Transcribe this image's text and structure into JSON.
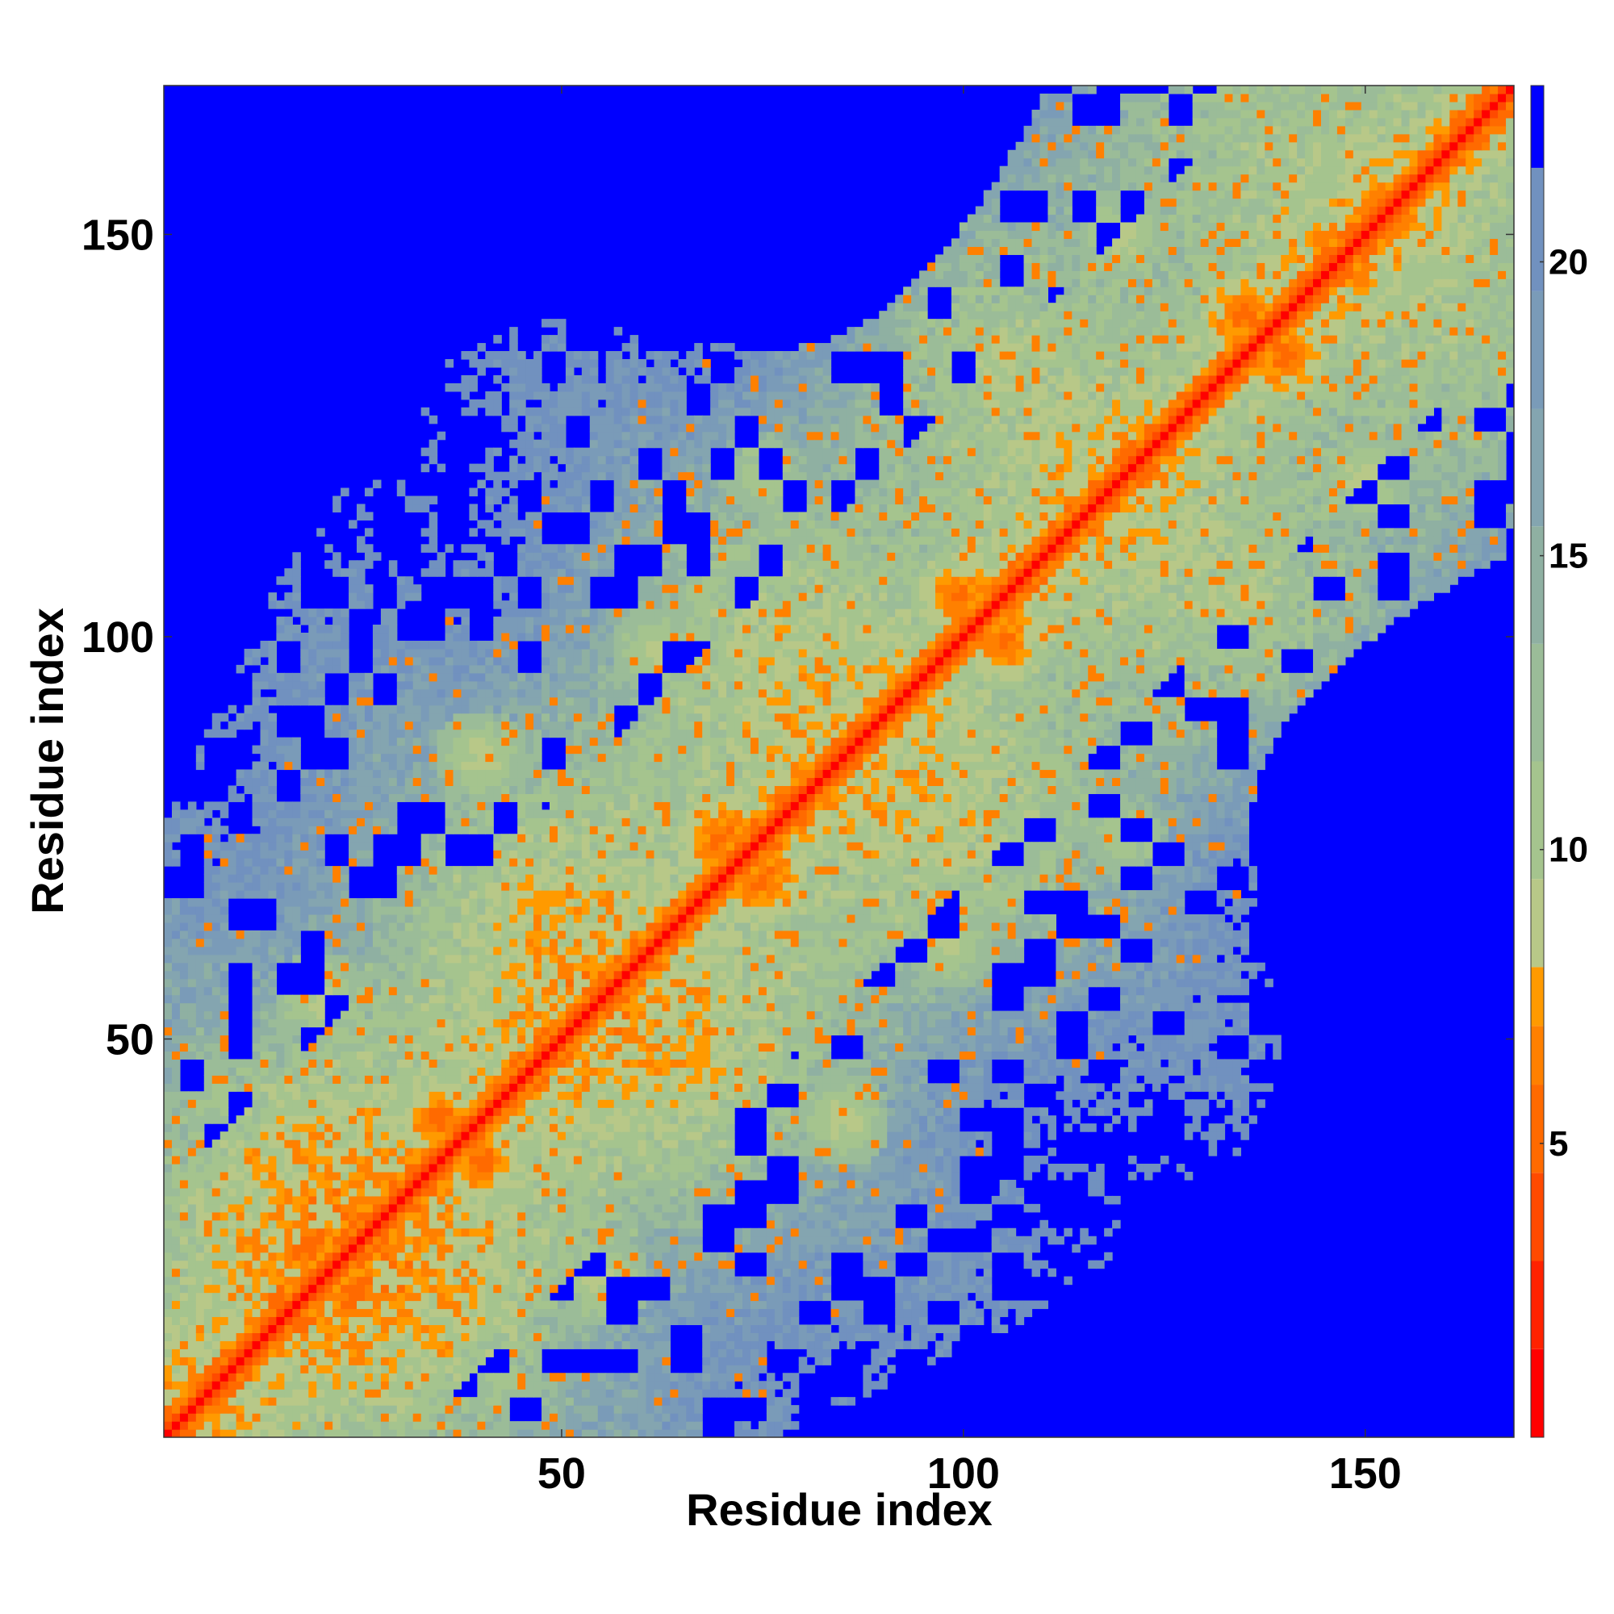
{
  "chart_data": {
    "type": "heatmap",
    "title": "",
    "xlabel": "Residue index",
    "ylabel": "Residue index",
    "xlim": [
      1,
      168
    ],
    "ylim": [
      1,
      168
    ],
    "x_ticks": [
      50,
      100,
      150
    ],
    "y_ticks": [
      50,
      100,
      150
    ],
    "x_tick_labels": [
      "50",
      "100",
      "150"
    ],
    "y_tick_labels": [
      "50",
      "100",
      "150"
    ],
    "n_residues": 168,
    "symmetric": true,
    "diagonal_color": "#ff0000",
    "background_color": "#0000ff",
    "colorbar": {
      "ticks": [
        5,
        10,
        15,
        20
      ],
      "tick_labels": [
        "5",
        "10",
        "15",
        "20"
      ],
      "range": [
        0,
        23
      ],
      "bands": [
        {
          "from": 0,
          "to": 1.5,
          "color": "#ff0000"
        },
        {
          "from": 1.5,
          "to": 3,
          "color": "#ff2200"
        },
        {
          "from": 3,
          "to": 4.5,
          "color": "#ff4a00"
        },
        {
          "from": 4.5,
          "to": 6,
          "color": "#ff6a00"
        },
        {
          "from": 6,
          "to": 7,
          "color": "#ff8000"
        },
        {
          "from": 7,
          "to": 8,
          "color": "#ff9a00"
        },
        {
          "from": 8,
          "to": 9.5,
          "color": "#b8c888"
        },
        {
          "from": 9.5,
          "to": 11.5,
          "color": "#a5c48e"
        },
        {
          "from": 11.5,
          "to": 13.5,
          "color": "#9bbc98"
        },
        {
          "from": 13.5,
          "to": 15.5,
          "color": "#8fb0a2"
        },
        {
          "from": 15.5,
          "to": 17.5,
          "color": "#84a5b0"
        },
        {
          "from": 17.5,
          "to": 19.5,
          "color": "#7a9bb8"
        },
        {
          "from": 19.5,
          "to": 21.6,
          "color": "#7191bf"
        },
        {
          "from": 21.6,
          "to": 23,
          "color": "#0000ff"
        }
      ]
    },
    "contact_clusters": [
      {
        "i": 35,
        "j": 40,
        "value": 5
      },
      {
        "i": 70,
        "j": 75,
        "value": 5
      },
      {
        "i": 100,
        "j": 105,
        "value": 5
      },
      {
        "i": 135,
        "j": 140,
        "value": 5
      },
      {
        "i": 40,
        "j": 85,
        "value": 8
      },
      {
        "i": 62,
        "j": 98,
        "value": 8
      },
      {
        "i": 75,
        "j": 120,
        "value": 9
      },
      {
        "i": 105,
        "j": 135,
        "value": 8
      },
      {
        "i": 20,
        "j": 55,
        "value": 8
      },
      {
        "i": 120,
        "j": 150,
        "value": 8
      }
    ]
  }
}
